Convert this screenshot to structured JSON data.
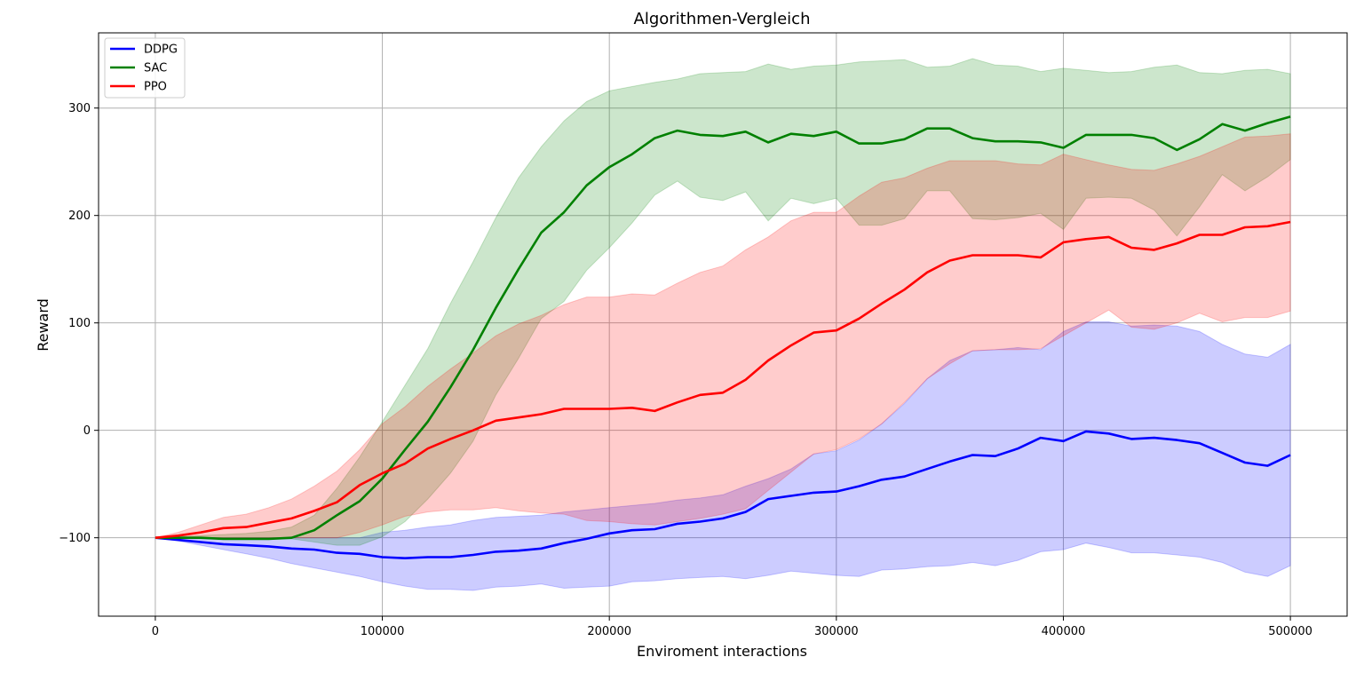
{
  "chart_data": {
    "type": "line",
    "title": "Algorithmen-Vergleich",
    "xlabel": "Enviroment interactions",
    "ylabel": "Reward",
    "xlim": [
      -25000,
      525000
    ],
    "ylim": [
      -173,
      370
    ],
    "xticks": [
      0,
      100000,
      200000,
      300000,
      400000,
      500000
    ],
    "xtick_labels": [
      "0",
      "100000",
      "200000",
      "300000",
      "400000",
      "500000"
    ],
    "yticks": [
      -100,
      0,
      100,
      200,
      300
    ],
    "ytick_labels": [
      "−100",
      "0",
      "100",
      "200",
      "300"
    ],
    "grid": true,
    "legend_position": "top-left",
    "x": [
      0,
      10000,
      20000,
      30000,
      40000,
      50000,
      60000,
      70000,
      80000,
      90000,
      100000,
      110000,
      120000,
      130000,
      140000,
      150000,
      160000,
      170000,
      180000,
      190000,
      200000,
      210000,
      220000,
      230000,
      240000,
      250000,
      260000,
      270000,
      280000,
      290000,
      300000,
      310000,
      320000,
      330000,
      340000,
      350000,
      360000,
      370000,
      380000,
      390000,
      400000,
      410000,
      420000,
      430000,
      440000,
      450000,
      460000,
      470000,
      480000,
      490000,
      500000
    ],
    "series": [
      {
        "name": "DDPG",
        "color": "#0000ff",
        "band_color": "#0000ff",
        "values": [
          -100,
          -102,
          -104,
          -106,
          -107,
          -108,
          -110,
          -111,
          -114,
          -115,
          -118,
          -119,
          -118,
          -118,
          -116,
          -113,
          -112,
          -110,
          -105,
          -101,
          -96,
          -93,
          -92,
          -87,
          -85,
          -82,
          -76,
          -64,
          -61,
          -58,
          -57,
          -52,
          -46,
          -43,
          -36,
          -29,
          -23,
          -24,
          -17,
          -7,
          -10,
          -1,
          -3,
          -8,
          -7,
          -9,
          -12,
          -21,
          -30,
          -33,
          -23
        ],
        "lower": [
          -100,
          -103,
          -107,
          -111,
          -115,
          -119,
          -124,
          -128,
          -132,
          -136,
          -141,
          -145,
          -148,
          -148,
          -149,
          -146,
          -145,
          -143,
          -147,
          -146,
          -145,
          -141,
          -140,
          -138,
          -137,
          -136,
          -138,
          -135,
          -131,
          -133,
          -135,
          -136,
          -130,
          -129,
          -127,
          -126,
          -123,
          -126,
          -121,
          -113,
          -111,
          -105,
          -109,
          -114,
          -114,
          -116,
          -118,
          -123,
          -132,
          -136,
          -126
        ],
        "upper": [
          -100,
          -100,
          -100,
          -100,
          -100,
          -100,
          -100,
          -100,
          -100,
          -100,
          -95,
          -93,
          -90,
          -88,
          -84,
          -81,
          -80,
          -79,
          -76,
          -74,
          -72,
          -70,
          -68,
          -65,
          -63,
          -60,
          -52,
          -45,
          -36,
          -22,
          -19,
          -9,
          6,
          25,
          48,
          65,
          74,
          75,
          77,
          75,
          92,
          101,
          101,
          97,
          98,
          97,
          92,
          80,
          71,
          68,
          80
        ]
      },
      {
        "name": "SAC",
        "color": "#008000",
        "band_color": "#008000",
        "values": [
          -100,
          -100,
          -100,
          -101,
          -101,
          -101,
          -100,
          -93,
          -79,
          -66,
          -45,
          -18,
          8,
          40,
          75,
          114,
          150,
          184,
          203,
          228,
          245,
          257,
          272,
          279,
          275,
          274,
          278,
          268,
          276,
          274,
          278,
          267,
          267,
          271,
          281,
          281,
          272,
          269,
          269,
          268,
          263,
          275,
          275,
          275,
          272,
          261,
          271,
          285,
          279,
          286,
          292
        ],
        "lower": [
          -100,
          -100,
          -101,
          -101,
          -101,
          -101,
          -101,
          -104,
          -107,
          -107,
          -99,
          -85,
          -64,
          -40,
          -10,
          33,
          67,
          104,
          120,
          149,
          170,
          193,
          219,
          232,
          217,
          214,
          222,
          195,
          216,
          211,
          216,
          191,
          191,
          197,
          223,
          223,
          197,
          196,
          198,
          202,
          187,
          216,
          217,
          216,
          205,
          181,
          208,
          238,
          223,
          236,
          252
        ],
        "upper": [
          -100,
          -99,
          -98,
          -97,
          -96,
          -94,
          -90,
          -79,
          -54,
          -25,
          8,
          42,
          76,
          118,
          157,
          198,
          235,
          264,
          288,
          306,
          316,
          320,
          324,
          327,
          332,
          333,
          334,
          341,
          336,
          339,
          340,
          343,
          344,
          345,
          338,
          339,
          346,
          340,
          339,
          334,
          337,
          335,
          333,
          334,
          338,
          340,
          333,
          332,
          335,
          336,
          332
        ]
      },
      {
        "name": "PPO",
        "color": "#ff0000",
        "band_color": "#ff0000",
        "values": [
          -100,
          -98,
          -95,
          -91,
          -90,
          -86,
          -82,
          -75,
          -67,
          -51,
          -40,
          -31,
          -17,
          -8,
          0,
          9,
          12,
          15,
          20,
          20,
          20,
          21,
          18,
          26,
          33,
          35,
          47,
          65,
          79,
          91,
          93,
          104,
          118,
          131,
          147,
          158,
          163,
          163,
          163,
          161,
          175,
          178,
          180,
          170,
          168,
          174,
          182,
          182,
          189,
          190,
          194
        ],
        "lower": [
          -100,
          -100,
          -100,
          -100,
          -100,
          -100,
          -100,
          -100,
          -100,
          -95,
          -88,
          -80,
          -76,
          -74,
          -74,
          -72,
          -75,
          -77,
          -78,
          -84,
          -85,
          -87,
          -88,
          -85,
          -82,
          -78,
          -73,
          -56,
          -39,
          -22,
          -18,
          -8,
          6,
          26,
          48,
          62,
          74,
          75,
          75,
          76,
          88,
          100,
          112,
          96,
          94,
          100,
          109,
          101,
          105,
          105,
          111
        ],
        "upper": [
          -100,
          -95,
          -88,
          -81,
          -78,
          -72,
          -64,
          -52,
          -38,
          -18,
          6,
          22,
          41,
          57,
          72,
          88,
          99,
          107,
          117,
          124,
          124,
          127,
          126,
          137,
          147,
          153,
          168,
          180,
          195,
          203,
          203,
          218,
          231,
          235,
          244,
          251,
          251,
          251,
          248,
          247,
          257,
          252,
          247,
          243,
          242,
          248,
          255,
          264,
          273,
          274,
          276
        ]
      }
    ]
  }
}
